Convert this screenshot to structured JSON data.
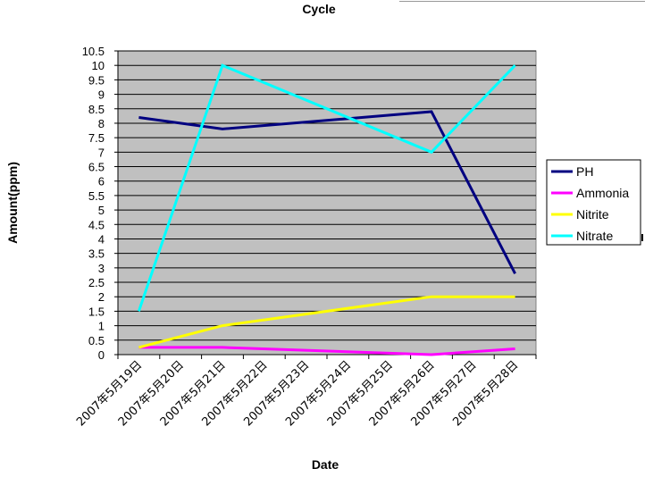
{
  "chart_data": {
    "type": "line",
    "title": "Cycle",
    "xlabel": "Date",
    "ylabel": "Amount(ppm)",
    "ylim": [
      0,
      10.5
    ],
    "ytick_step": 0.5,
    "grid": true,
    "legend_position": "right",
    "plot_background": "#C0C0C0",
    "categories": [
      "2007年5月19日",
      "2007年5月20日",
      "2007年5月21日",
      "2007年5月22日",
      "2007年5月23日",
      "2007年5月24日",
      "2007年5月25日",
      "2007年5月26日",
      "2007年5月27日",
      "2007年5月28日"
    ],
    "x": [
      "2007-05-19",
      "2007-05-20",
      "2007-05-21",
      "2007-05-22",
      "2007-05-23",
      "2007-05-24",
      "2007-05-25",
      "2007-05-26",
      "2007-05-27",
      "2007-05-28"
    ],
    "series": [
      {
        "name": "PH",
        "color": "#000080",
        "x": [
          "2007-05-19",
          "2007-05-21",
          "2007-05-26",
          "2007-05-28"
        ],
        "values": [
          8.2,
          7.8,
          8.4,
          2.8
        ]
      },
      {
        "name": "Ammonia",
        "color": "#FF00FF",
        "x": [
          "2007-05-19",
          "2007-05-21",
          "2007-05-26",
          "2007-05-28"
        ],
        "values": [
          0.25,
          0.25,
          0,
          0.2
        ]
      },
      {
        "name": "Nitrite",
        "color": "#FFFF00",
        "x": [
          "2007-05-19",
          "2007-05-21",
          "2007-05-26",
          "2007-05-28"
        ],
        "values": [
          0.25,
          1,
          2,
          2
        ]
      },
      {
        "name": "Nitrate",
        "color": "#00FFFF",
        "x": [
          "2007-05-19",
          "2007-05-21",
          "2007-05-26",
          "2007-05-28"
        ],
        "values": [
          1.5,
          10,
          7,
          10
        ]
      }
    ]
  }
}
